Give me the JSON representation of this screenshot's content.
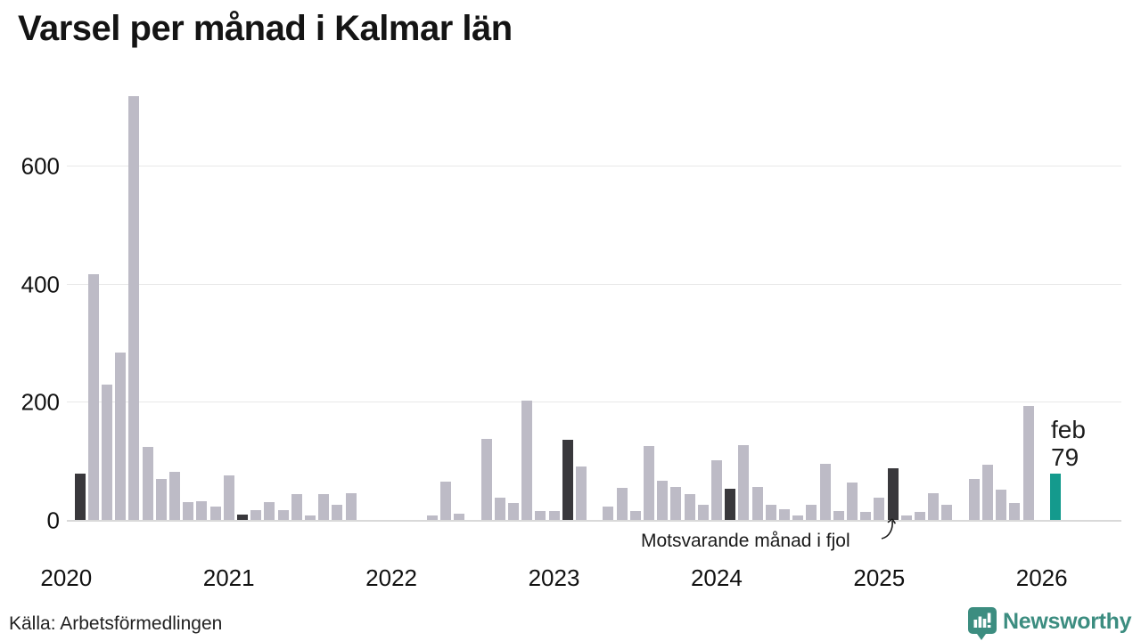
{
  "chart_data": {
    "type": "bar",
    "title": "Varsel per månad i Kalmar län",
    "xlabel": "",
    "ylabel": "",
    "ylim": [
      0,
      740
    ],
    "grid": true,
    "yticks": [
      0,
      200,
      400,
      600
    ],
    "xticks": [
      "2020",
      "2021",
      "2022",
      "2023",
      "2024",
      "2025",
      "2026"
    ],
    "annotation": "Motsvarande månad i fjol",
    "annotation_target": "feb 2025",
    "current_label": {
      "line1": "feb",
      "line2": "79"
    },
    "colors": {
      "bar": "#bdbbc6",
      "compare": "#39383c",
      "highlight": "#149a8d",
      "brand": "#3c8d80"
    },
    "months": [
      {
        "m": "feb 2020",
        "v": 78,
        "k": "compare"
      },
      {
        "m": "mar 2020",
        "v": 417,
        "k": "default"
      },
      {
        "m": "apr 2020",
        "v": 229,
        "k": "default"
      },
      {
        "m": "maj 2020",
        "v": 283,
        "k": "default"
      },
      {
        "m": "jun 2020",
        "v": 718,
        "k": "default"
      },
      {
        "m": "jul 2020",
        "v": 124,
        "k": "default"
      },
      {
        "m": "aug 2020",
        "v": 70,
        "k": "default"
      },
      {
        "m": "sep 2020",
        "v": 81,
        "k": "default"
      },
      {
        "m": "okt 2020",
        "v": 30,
        "k": "default"
      },
      {
        "m": "nov 2020",
        "v": 31,
        "k": "default"
      },
      {
        "m": "dec 2020",
        "v": 23,
        "k": "default"
      },
      {
        "m": "jan 2021",
        "v": 75,
        "k": "default"
      },
      {
        "m": "feb 2021",
        "v": 9,
        "k": "compare"
      },
      {
        "m": "mar 2021",
        "v": 16,
        "k": "default"
      },
      {
        "m": "apr 2021",
        "v": 30,
        "k": "default"
      },
      {
        "m": "maj 2021",
        "v": 17,
        "k": "default"
      },
      {
        "m": "jun 2021",
        "v": 44,
        "k": "default"
      },
      {
        "m": "jul 2021",
        "v": 8,
        "k": "default"
      },
      {
        "m": "aug 2021",
        "v": 44,
        "k": "default"
      },
      {
        "m": "sep 2021",
        "v": 25,
        "k": "default"
      },
      {
        "m": "okt 2021",
        "v": 45,
        "k": "default"
      },
      {
        "m": "nov 2021",
        "v": 0,
        "k": "default"
      },
      {
        "m": "dec 2021",
        "v": 0,
        "k": "default"
      },
      {
        "m": "jan 2022",
        "v": 0,
        "k": "default"
      },
      {
        "m": "feb 2022",
        "v": 0,
        "k": "compare"
      },
      {
        "m": "mar 2022",
        "v": 0,
        "k": "default"
      },
      {
        "m": "apr 2022",
        "v": 8,
        "k": "default"
      },
      {
        "m": "maj 2022",
        "v": 65,
        "k": "default"
      },
      {
        "m": "jun 2022",
        "v": 10,
        "k": "default"
      },
      {
        "m": "jul 2022",
        "v": 0,
        "k": "default"
      },
      {
        "m": "aug 2022",
        "v": 138,
        "k": "default"
      },
      {
        "m": "sep 2022",
        "v": 38,
        "k": "default"
      },
      {
        "m": "okt 2022",
        "v": 29,
        "k": "default"
      },
      {
        "m": "nov 2022",
        "v": 202,
        "k": "default"
      },
      {
        "m": "dec 2022",
        "v": 15,
        "k": "default"
      },
      {
        "m": "jan 2023",
        "v": 15,
        "k": "default"
      },
      {
        "m": "feb 2023",
        "v": 136,
        "k": "compare"
      },
      {
        "m": "mar 2023",
        "v": 90,
        "k": "default"
      },
      {
        "m": "apr 2023",
        "v": 0,
        "k": "default"
      },
      {
        "m": "maj 2023",
        "v": 23,
        "k": "default"
      },
      {
        "m": "jun 2023",
        "v": 55,
        "k": "default"
      },
      {
        "m": "jul 2023",
        "v": 15,
        "k": "default"
      },
      {
        "m": "aug 2023",
        "v": 125,
        "k": "default"
      },
      {
        "m": "sep 2023",
        "v": 66,
        "k": "default"
      },
      {
        "m": "okt 2023",
        "v": 56,
        "k": "default"
      },
      {
        "m": "nov 2023",
        "v": 43,
        "k": "default"
      },
      {
        "m": "dec 2023",
        "v": 26,
        "k": "default"
      },
      {
        "m": "jan 2024",
        "v": 101,
        "k": "default"
      },
      {
        "m": "feb 2024",
        "v": 53,
        "k": "compare"
      },
      {
        "m": "mar 2024",
        "v": 126,
        "k": "default"
      },
      {
        "m": "apr 2024",
        "v": 56,
        "k": "default"
      },
      {
        "m": "maj 2024",
        "v": 25,
        "k": "default"
      },
      {
        "m": "jun 2024",
        "v": 18,
        "k": "default"
      },
      {
        "m": "jul 2024",
        "v": 8,
        "k": "default"
      },
      {
        "m": "aug 2024",
        "v": 26,
        "k": "default"
      },
      {
        "m": "sep 2024",
        "v": 95,
        "k": "default"
      },
      {
        "m": "okt 2024",
        "v": 15,
        "k": "default"
      },
      {
        "m": "nov 2024",
        "v": 64,
        "k": "default"
      },
      {
        "m": "dec 2024",
        "v": 13,
        "k": "default"
      },
      {
        "m": "jan 2025",
        "v": 38,
        "k": "default"
      },
      {
        "m": "feb 2025",
        "v": 88,
        "k": "compare"
      },
      {
        "m": "mar 2025",
        "v": 7,
        "k": "default"
      },
      {
        "m": "apr 2025",
        "v": 14,
        "k": "default"
      },
      {
        "m": "maj 2025",
        "v": 45,
        "k": "default"
      },
      {
        "m": "jun 2025",
        "v": 25,
        "k": "default"
      },
      {
        "m": "jul 2025",
        "v": 0,
        "k": "default"
      },
      {
        "m": "aug 2025",
        "v": 70,
        "k": "default"
      },
      {
        "m": "sep 2025",
        "v": 93,
        "k": "default"
      },
      {
        "m": "okt 2025",
        "v": 51,
        "k": "default"
      },
      {
        "m": "nov 2025",
        "v": 28,
        "k": "default"
      },
      {
        "m": "dec 2025",
        "v": 193,
        "k": "default"
      },
      {
        "m": "jan 2026",
        "v": 0,
        "k": "default"
      },
      {
        "m": "feb 2026",
        "v": 79,
        "k": "highlight"
      }
    ]
  },
  "footer": {
    "source": "Källa: Arbetsförmedlingen",
    "brand": "Newsworthy"
  }
}
